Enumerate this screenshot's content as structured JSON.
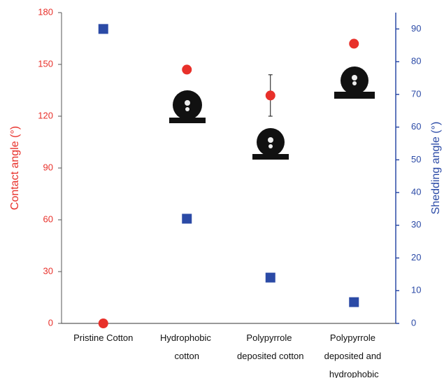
{
  "chart_data": {
    "type": "scatter",
    "categories": [
      "Pristine Cotton",
      "Hydrophobic cotton",
      "Polypyrrole deposited cotton",
      "Polypyrrole deposited and hydrophobic"
    ],
    "y_label": "Contact angle (°)",
    "y2_label": "Shedding angle (°)",
    "ylim": [
      0,
      180
    ],
    "yticks": [
      0,
      30,
      60,
      90,
      120,
      150,
      180
    ],
    "y2lim": [
      0,
      95
    ],
    "y2ticks": [
      0,
      10,
      20,
      30,
      40,
      50,
      60,
      70,
      80,
      90
    ],
    "series": [
      {
        "color": "#e8302a",
        "marker": "circle",
        "values": [
          0,
          147,
          132,
          162
        ],
        "errors": [
          null,
          null,
          12,
          null
        ]
      },
      {
        "color": "#2b4aa6",
        "marker": "square",
        "axis": "y2",
        "values": [
          90,
          32,
          14,
          6.5
        ]
      }
    ]
  }
}
